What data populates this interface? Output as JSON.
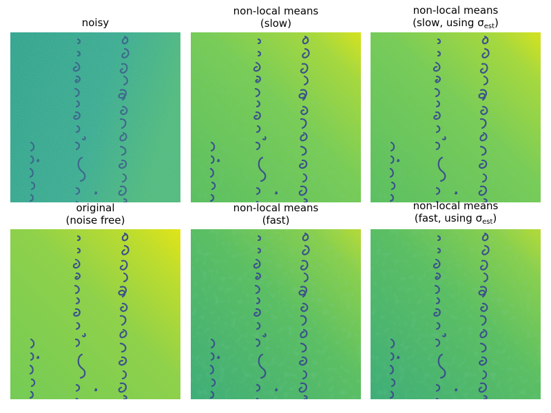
{
  "panels": [
    {
      "title_line1": "noisy",
      "title_line2": "",
      "title_line2_pre": "",
      "title_line2_post": "",
      "variant": "noisy"
    },
    {
      "title_line1": "non-local means",
      "title_line2": "(slow)",
      "title_line2_pre": "",
      "title_line2_post": "",
      "variant": "denoised"
    },
    {
      "title_line1": "non-local means",
      "title_line2": "",
      "title_line2_pre": "(slow, using σ",
      "title_line2_sub": "est",
      "title_line2_post": ")",
      "variant": "denoised"
    },
    {
      "title_line1": "original",
      "title_line2": "(noise free)",
      "title_line2_pre": "",
      "title_line2_post": "",
      "variant": "original"
    },
    {
      "title_line1": "non-local means",
      "title_line2": "(fast)",
      "title_line2_pre": "",
      "title_line2_post": "",
      "variant": "fast"
    },
    {
      "title_line1": "non-local means",
      "title_line2": "",
      "title_line2_pre": "(fast, using σ",
      "title_line2_sub": "est",
      "title_line2_post": ")",
      "variant": "fast"
    }
  ],
  "colors": {
    "viridis_teal": "#21918c",
    "viridis_green": "#5ec962",
    "viridis_lime": "#7ad151",
    "viridis_yellow": "#dde318",
    "ink": "#3b528b"
  }
}
